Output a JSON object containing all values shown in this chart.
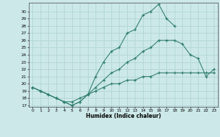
{
  "xlabel": "Humidex (Indice chaleur)",
  "bg_color": "#cce8e8",
  "line_color": "#2e7d6e",
  "grid_color": "#b0d4d4",
  "ylim": [
    17,
    31
  ],
  "xlim": [
    -0.5,
    23.5
  ],
  "yticks": [
    17,
    18,
    19,
    20,
    21,
    22,
    23,
    24,
    25,
    26,
    27,
    28,
    29,
    30
  ],
  "xticks": [
    0,
    1,
    2,
    3,
    4,
    5,
    6,
    7,
    8,
    9,
    10,
    11,
    12,
    13,
    14,
    15,
    16,
    17,
    18,
    19,
    20,
    21,
    22,
    23
  ],
  "line1_x": [
    0,
    1,
    2,
    3,
    4,
    5,
    6,
    7,
    8,
    9,
    10,
    11,
    12,
    13,
    14,
    15,
    16,
    17,
    18
  ],
  "line1_y": [
    19.5,
    19,
    18.5,
    18,
    17.5,
    17,
    17.5,
    18.5,
    21,
    23,
    24.5,
    25,
    27,
    27.5,
    29.5,
    30,
    31,
    29,
    28
  ],
  "line2_x": [
    0,
    1,
    2,
    3,
    4,
    5,
    6,
    7,
    8,
    9,
    10,
    11,
    12,
    13,
    14,
    15,
    16,
    17,
    18,
    19,
    20,
    21,
    22,
    23
  ],
  "line2_y": [
    19.5,
    19,
    18.5,
    18,
    17.5,
    17,
    17.5,
    18.5,
    19.5,
    20.5,
    21.5,
    22,
    23,
    23.5,
    24.5,
    25,
    26,
    26,
    26,
    25.5,
    24,
    23.5,
    21,
    22
  ],
  "line3_x": [
    0,
    1,
    2,
    3,
    4,
    5,
    6,
    7,
    8,
    9,
    10,
    11,
    12,
    13,
    14,
    15,
    16,
    17,
    18,
    19,
    20,
    21,
    22,
    23
  ],
  "line3_y": [
    19.5,
    19,
    18.5,
    18,
    17.5,
    17.5,
    18,
    18.5,
    19,
    19.5,
    20,
    20,
    20.5,
    20.5,
    21,
    21,
    21.5,
    21.5,
    21.5,
    21.5,
    21.5,
    21.5,
    21.5,
    21.5
  ]
}
